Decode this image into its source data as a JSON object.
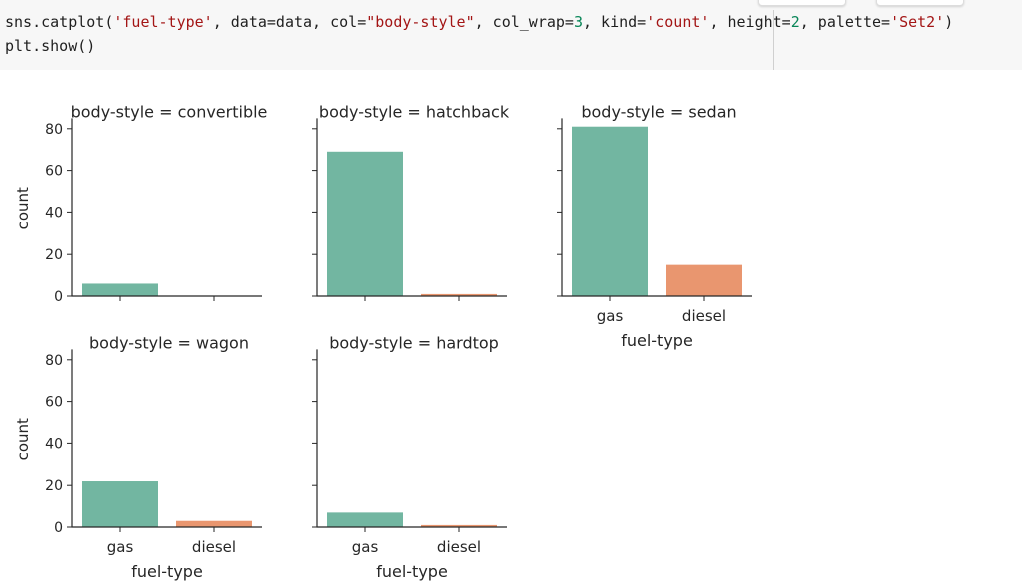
{
  "code_cell": {
    "line1_parts": {
      "a": "sns.catplot(",
      "b": "'fuel-type'",
      "c": ", data=data, col=",
      "d": "\"body-style\"",
      "e": ", col_wrap=",
      "f": "3",
      "g": ", kind=",
      "h": "'count'",
      "i": ", height=",
      "j": "2",
      "k": ", palette=",
      "l": "'Set2'",
      "m": ")"
    },
    "line2": "plt.show()"
  },
  "colors": {
    "gas": "#72b6a1",
    "diesel": "#e9966f",
    "axis": "#262626"
  },
  "labels": {
    "ylabel": "count",
    "xlabel": "fuel-type",
    "yticks": [
      "0",
      "20",
      "40",
      "60",
      "80"
    ],
    "xticks": [
      "gas",
      "diesel"
    ]
  },
  "panels": {
    "convertible": {
      "title": "body-style = convertible"
    },
    "hatchback": {
      "title": "body-style = hatchback"
    },
    "sedan": {
      "title": "body-style = sedan"
    },
    "wagon": {
      "title": "body-style = wagon"
    },
    "hardtop": {
      "title": "body-style = hardtop"
    }
  },
  "chart_data": {
    "type": "bar",
    "title": "",
    "xlabel": "fuel-type",
    "ylabel": "count",
    "categories": [
      "gas",
      "diesel"
    ],
    "facet_column": "body-style",
    "col_wrap": 3,
    "ylim": [
      0,
      85
    ],
    "yticks": [
      0,
      20,
      40,
      60,
      80
    ],
    "palette": "Set2",
    "legend": "none",
    "grid": false,
    "facets": [
      {
        "title": "body-style = convertible",
        "values": [
          6,
          0
        ]
      },
      {
        "title": "body-style = hatchback",
        "values": [
          69,
          1
        ]
      },
      {
        "title": "body-style = sedan",
        "values": [
          81,
          15
        ]
      },
      {
        "title": "body-style = wagon",
        "values": [
          22,
          3
        ]
      },
      {
        "title": "body-style = hardtop",
        "values": [
          7,
          1
        ]
      }
    ]
  }
}
